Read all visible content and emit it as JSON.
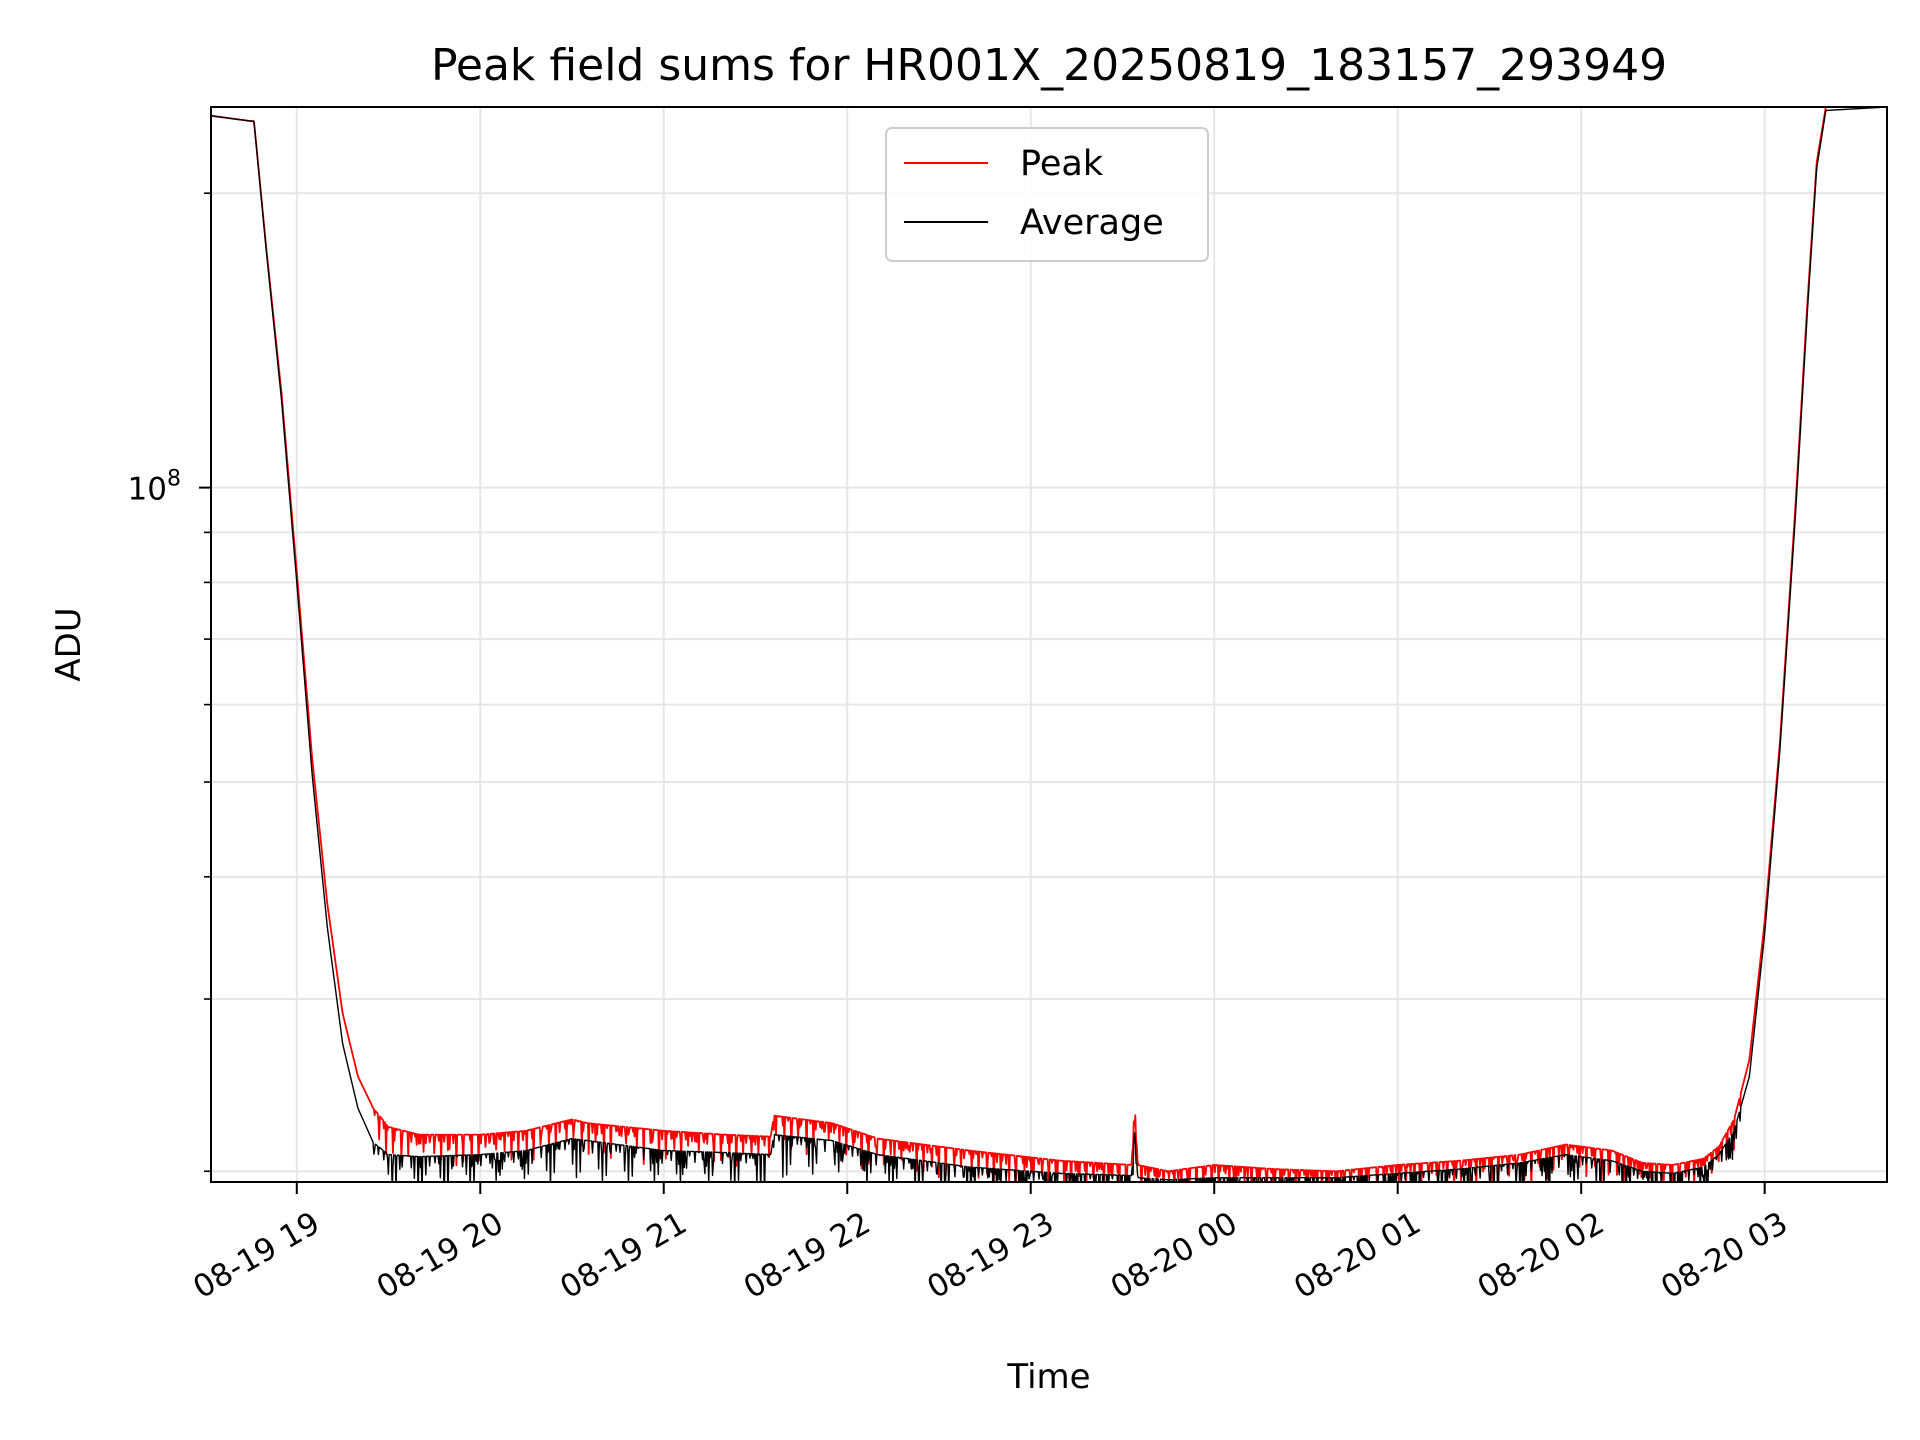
{
  "chart_data": {
    "type": "line",
    "title": "Peak field sums for HR001X_20250819_183157_293949",
    "xlabel": "Time",
    "ylabel": "ADU",
    "y_scale": "log",
    "xlim": [
      "2025-08-19T18:31:57",
      "2025-08-20T03:40:00"
    ],
    "ylim": [
      19500000,
      245000000
    ],
    "x_ticks": [
      {
        "t": "2025-08-19T19:00:00",
        "label": "08-19 19"
      },
      {
        "t": "2025-08-19T20:00:00",
        "label": "08-19 20"
      },
      {
        "t": "2025-08-19T21:00:00",
        "label": "08-19 21"
      },
      {
        "t": "2025-08-19T22:00:00",
        "label": "08-19 22"
      },
      {
        "t": "2025-08-19T23:00:00",
        "label": "08-19 23"
      },
      {
        "t": "2025-08-20T00:00:00",
        "label": "08-20 00"
      },
      {
        "t": "2025-08-20T01:00:00",
        "label": "08-20 01"
      },
      {
        "t": "2025-08-20T02:00:00",
        "label": "08-20 02"
      },
      {
        "t": "2025-08-20T03:00:00",
        "label": "08-20 03"
      }
    ],
    "y_major_ticks": [
      {
        "value": 100000000,
        "base": "10",
        "exp": "8"
      }
    ],
    "y_minor_ticks": [
      20000000,
      30000000,
      40000000,
      50000000,
      60000000,
      70000000,
      80000000,
      90000000,
      200000000
    ],
    "grid": true,
    "legend_position": "upper center",
    "series": [
      {
        "name": "Peak",
        "color": "#ff0000",
        "x": [
          "2025-08-19T18:31:57",
          "2025-08-19T18:45:00",
          "2025-08-19T18:46:00",
          "2025-08-19T18:50:00",
          "2025-08-19T18:55:00",
          "2025-08-19T19:00:00",
          "2025-08-19T19:05:00",
          "2025-08-19T19:10:00",
          "2025-08-19T19:15:00",
          "2025-08-19T19:20:00",
          "2025-08-19T19:25:00",
          "2025-08-19T19:30:00",
          "2025-08-19T19:40:00",
          "2025-08-19T20:00:00",
          "2025-08-19T20:15:00",
          "2025-08-19T20:30:00",
          "2025-08-19T20:35:00",
          "2025-08-19T21:00:00",
          "2025-08-19T21:20:00",
          "2025-08-19T21:35:00",
          "2025-08-19T21:36:00",
          "2025-08-19T21:55:00",
          "2025-08-19T22:10:00",
          "2025-08-19T22:40:00",
          "2025-08-19T23:10:00",
          "2025-08-19T23:33:00",
          "2025-08-19T23:34:00",
          "2025-08-19T23:35:00",
          "2025-08-19T23:45:00",
          "2025-08-20T00:00:00",
          "2025-08-20T00:20:00",
          "2025-08-20T00:40:00",
          "2025-08-20T01:00:00",
          "2025-08-20T01:20:00",
          "2025-08-20T01:40:00",
          "2025-08-20T01:55:00",
          "2025-08-20T02:10:00",
          "2025-08-20T02:20:00",
          "2025-08-20T02:30:00",
          "2025-08-20T02:40:00",
          "2025-08-20T02:45:00",
          "2025-08-20T02:50:00",
          "2025-08-20T02:55:00",
          "2025-08-20T03:00:00",
          "2025-08-20T03:05:00",
          "2025-08-20T03:10:00",
          "2025-08-20T03:14:00",
          "2025-08-20T03:17:00",
          "2025-08-20T03:20:00",
          "2025-08-20T03:40:00"
        ],
        "y": [
          240000000,
          237000000,
          237000000,
          176000000,
          125000000,
          82000000,
          53000000,
          37500000,
          29000000,
          25000000,
          23200000,
          22200000,
          21800000,
          21800000,
          22000000,
          22600000,
          22400000,
          22000000,
          21800000,
          21700000,
          22800000,
          22400000,
          21600000,
          21000000,
          20500000,
          20300000,
          23500000,
          20300000,
          20000000,
          20300000,
          20100000,
          20000000,
          20300000,
          20500000,
          20800000,
          21300000,
          21000000,
          20400000,
          20300000,
          20600000,
          21200000,
          22600000,
          26000000,
          36000000,
          55000000,
          95000000,
          155000000,
          215000000,
          245000000,
          245000000
        ]
      },
      {
        "name": "Average",
        "color": "#000000",
        "x": [
          "2025-08-19T18:31:57",
          "2025-08-19T18:45:00",
          "2025-08-19T18:46:00",
          "2025-08-19T18:50:00",
          "2025-08-19T18:55:00",
          "2025-08-19T19:00:00",
          "2025-08-19T19:05:00",
          "2025-08-19T19:10:00",
          "2025-08-19T19:15:00",
          "2025-08-19T19:20:00",
          "2025-08-19T19:25:00",
          "2025-08-19T19:30:00",
          "2025-08-19T19:40:00",
          "2025-08-19T20:00:00",
          "2025-08-19T20:15:00",
          "2025-08-19T20:30:00",
          "2025-08-19T20:35:00",
          "2025-08-19T21:00:00",
          "2025-08-19T21:20:00",
          "2025-08-19T21:35:00",
          "2025-08-19T21:36:00",
          "2025-08-19T21:55:00",
          "2025-08-19T22:10:00",
          "2025-08-19T22:40:00",
          "2025-08-19T23:10:00",
          "2025-08-19T23:33:00",
          "2025-08-19T23:34:00",
          "2025-08-19T23:35:00",
          "2025-08-19T23:45:00",
          "2025-08-20T00:00:00",
          "2025-08-20T00:20:00",
          "2025-08-20T00:40:00",
          "2025-08-20T01:00:00",
          "2025-08-20T01:20:00",
          "2025-08-20T01:40:00",
          "2025-08-20T01:55:00",
          "2025-08-20T02:10:00",
          "2025-08-20T02:20:00",
          "2025-08-20T02:30:00",
          "2025-08-20T02:40:00",
          "2025-08-20T02:45:00",
          "2025-08-20T02:50:00",
          "2025-08-20T02:55:00",
          "2025-08-20T03:00:00",
          "2025-08-20T03:05:00",
          "2025-08-20T03:10:00",
          "2025-08-20T03:14:00",
          "2025-08-20T03:17:00",
          "2025-08-20T03:20:00",
          "2025-08-20T03:40:00"
        ],
        "y": [
          240000000,
          237000000,
          237000000,
          175000000,
          123000000,
          80000000,
          51000000,
          35500000,
          27000000,
          23200000,
          21400000,
          20800000,
          20700000,
          20800000,
          21000000,
          21600000,
          21500000,
          21000000,
          20900000,
          20800000,
          21800000,
          21500000,
          20800000,
          20200000,
          19900000,
          19800000,
          22000000,
          19700000,
          19600000,
          19700000,
          19700000,
          19700000,
          19900000,
          20100000,
          20400000,
          20800000,
          20500000,
          20000000,
          19900000,
          20200000,
          20800000,
          22000000,
          25000000,
          35000000,
          54000000,
          93000000,
          152000000,
          212000000,
          243000000,
          245000000
        ]
      }
    ]
  }
}
